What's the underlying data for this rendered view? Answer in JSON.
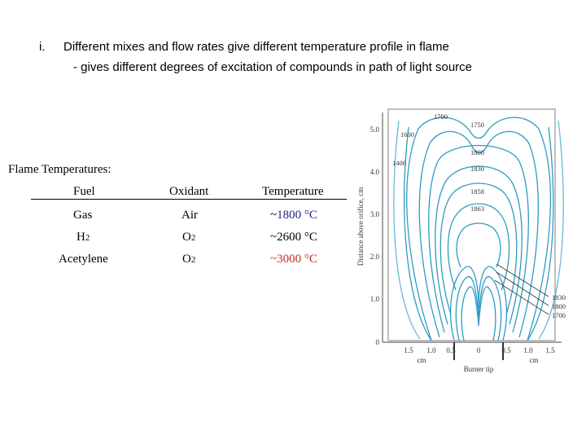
{
  "bullet": {
    "marker": "i.",
    "text": "Different mixes and flow rates give different temperature profile in flame",
    "sub": "- gives different degrees of excitation of compounds in path of light source"
  },
  "table": {
    "title": "Flame Temperatures:",
    "headers": [
      "Fuel",
      "Oxidant",
      "Temperature"
    ],
    "rows": [
      {
        "fuel": "Gas",
        "oxidant": "Air",
        "prefix": "~",
        "temp": "1800 °C"
      },
      {
        "fuel": "H",
        "fuel_sub": "2",
        "oxidant": "O",
        "oxidant_sub": "2",
        "prefix": "~",
        "temp": "2600 °C"
      },
      {
        "fuel": "Acetylene",
        "oxidant": "O",
        "oxidant_sub": "2",
        "prefix": "~",
        "temp": "3000 °C"
      }
    ]
  },
  "diagram": {
    "y_axis_label": "Distance above orifice, cm",
    "y_ticks": [
      "5.0",
      "4.0",
      "3.0",
      "2.0",
      "1.0",
      "0"
    ],
    "x_ticks": [
      "1.5",
      "1.0",
      "0.5",
      "0",
      "0.5",
      "1.0",
      "1.5"
    ],
    "x_unit_left": "cm",
    "x_unit_right": "cm",
    "x_caption": "Burner tip",
    "contour_labels": [
      "1700",
      "1750",
      "1600",
      "1800",
      "1400",
      "1830",
      "1858",
      "1863"
    ],
    "callout_labels": [
      "1830",
      "1800",
      "1700"
    ],
    "colors": {
      "contour": "#2e9bc4",
      "frame": "#aaaaaa"
    }
  }
}
